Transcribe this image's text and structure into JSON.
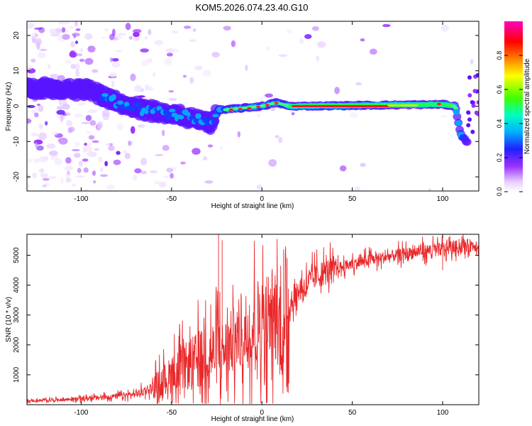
{
  "title": "KOM5.2026.074.23.40.G10",
  "colors": {
    "snr_line": "#e8282a",
    "axis": "#000000",
    "background": "#ffffff"
  },
  "chart_data": [
    {
      "type": "heatmap",
      "name": "spectrogram",
      "xlabel": "Height of straight line (km)",
      "ylabel": "Frequency (Hz)",
      "xlim": [
        -130,
        120
      ],
      "ylim": [
        -24,
        24
      ],
      "xticks": [
        -100,
        -50,
        0,
        50,
        100
      ],
      "yticks": [
        -20,
        -10,
        0,
        10,
        20
      ],
      "xtick_labels": [
        "-100",
        "-50",
        "0",
        "50",
        "100"
      ],
      "ytick_labels": [
        "-20",
        "-10",
        "0",
        "10",
        "20"
      ],
      "ridge": [
        {
          "x": -130,
          "y": 5
        },
        {
          "x": -110,
          "y": 5
        },
        {
          "x": -95,
          "y": 4.5
        },
        {
          "x": -88,
          "y": 3
        },
        {
          "x": -75,
          "y": 0
        },
        {
          "x": -60,
          "y": -1.5
        },
        {
          "x": -45,
          "y": -2.5
        },
        {
          "x": -35,
          "y": -4
        },
        {
          "x": -28,
          "y": -5
        },
        {
          "x": -24,
          "y": -1
        },
        {
          "x": -20,
          "y": -1
        },
        {
          "x": -10,
          "y": -0.5
        },
        {
          "x": 0,
          "y": 0
        },
        {
          "x": 8,
          "y": 1
        },
        {
          "x": 15,
          "y": 0
        },
        {
          "x": 20,
          "y": 0
        },
        {
          "x": 100,
          "y": 0.5
        },
        {
          "x": 107,
          "y": 0
        },
        {
          "x": 110,
          "y": -8
        },
        {
          "x": 113,
          "y": -10
        }
      ],
      "colorbar": {
        "label": "Normalized spectral amplitude",
        "range": [
          0,
          1
        ],
        "ticks": [
          0.0,
          0.2,
          0.4,
          0.6,
          0.8
        ],
        "tick_labels": [
          "0.0",
          "0.2",
          "0.4",
          "0.6",
          "0.8"
        ]
      }
    },
    {
      "type": "line",
      "name": "snr",
      "xlabel": "Height of straight line (km)",
      "ylabel": "SNR (10 * v/v)",
      "xlim": [
        -130,
        120
      ],
      "ylim": [
        0,
        5700
      ],
      "xticks": [
        -100,
        -50,
        0,
        50,
        100
      ],
      "yticks": [
        1000,
        2000,
        3000,
        4000,
        5000
      ],
      "xtick_labels": [
        "-100",
        "-50",
        "0",
        "50",
        "100"
      ],
      "ytick_labels": [
        "1000",
        "2000",
        "3000",
        "4000",
        "5000"
      ],
      "trend": [
        {
          "x": -130,
          "y": 120
        },
        {
          "x": -100,
          "y": 200
        },
        {
          "x": -85,
          "y": 260
        },
        {
          "x": -70,
          "y": 350
        },
        {
          "x": -60,
          "y": 600
        },
        {
          "x": -50,
          "y": 1000
        },
        {
          "x": -40,
          "y": 1350
        },
        {
          "x": -30,
          "y": 1700
        },
        {
          "x": -24,
          "y": 1800
        },
        {
          "x": -20,
          "y": 1900
        },
        {
          "x": -15,
          "y": 2200
        },
        {
          "x": -10,
          "y": 2500
        },
        {
          "x": -5,
          "y": 2700
        },
        {
          "x": 0,
          "y": 2900
        },
        {
          "x": 5,
          "y": 3100
        },
        {
          "x": 10,
          "y": 2700
        },
        {
          "x": 12,
          "y": 2000
        },
        {
          "x": 15,
          "y": 3300
        },
        {
          "x": 20,
          "y": 3800
        },
        {
          "x": 30,
          "y": 4300
        },
        {
          "x": 40,
          "y": 4550
        },
        {
          "x": 50,
          "y": 4700
        },
        {
          "x": 60,
          "y": 4850
        },
        {
          "x": 70,
          "y": 4950
        },
        {
          "x": 80,
          "y": 5050
        },
        {
          "x": 90,
          "y": 5150
        },
        {
          "x": 100,
          "y": 5200
        },
        {
          "x": 110,
          "y": 5300
        },
        {
          "x": 120,
          "y": 5350
        }
      ],
      "spikes": [
        {
          "x": -24,
          "y": 5700
        },
        {
          "x": -22,
          "y": 5500
        },
        {
          "x": -23,
          "y": 0
        },
        {
          "x": 12,
          "y": 5200
        },
        {
          "x": 12,
          "y": 1400
        },
        {
          "x": 100,
          "y": 5700
        },
        {
          "x": 100,
          "y": 4500
        },
        {
          "x": 14,
          "y": 4900
        }
      ]
    }
  ]
}
